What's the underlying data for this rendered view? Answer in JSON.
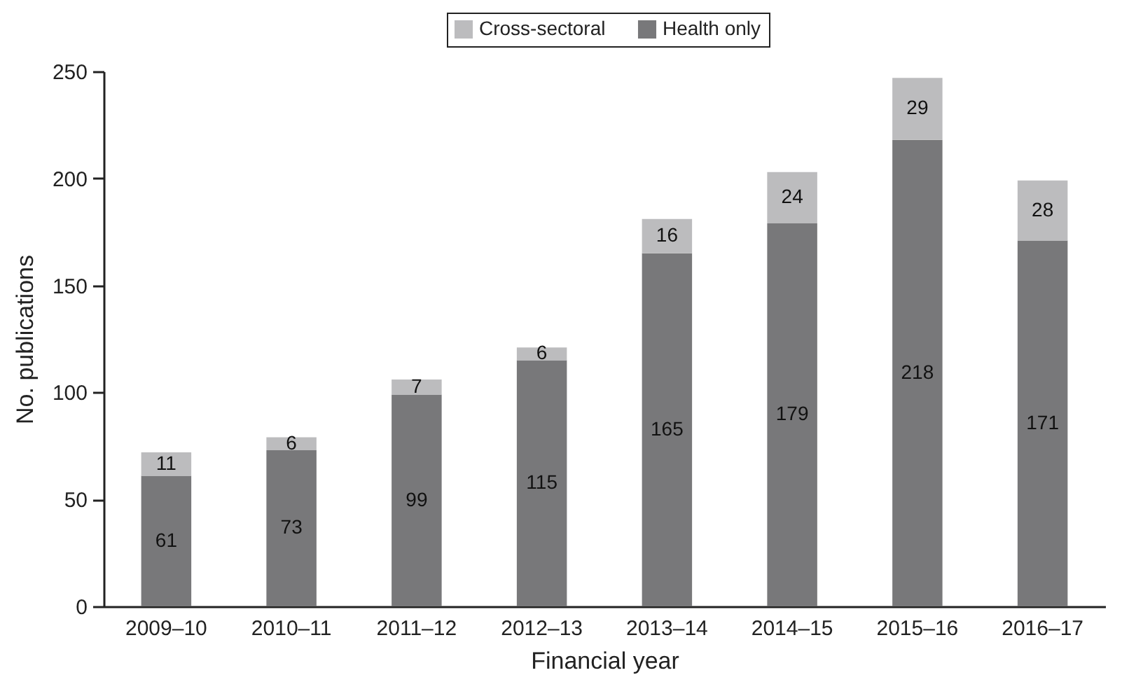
{
  "chart_data": {
    "type": "bar",
    "stacked": true,
    "xlabel": "Financial year",
    "ylabel": "No. publications",
    "categories": [
      "2009–10",
      "2010–11",
      "2011–12",
      "2012–13",
      "2013–14",
      "2014–15",
      "2015–16",
      "2016–17"
    ],
    "series": [
      {
        "name": "Health only",
        "color": "#78787a",
        "values": [
          61,
          73,
          99,
          115,
          165,
          179,
          218,
          171
        ]
      },
      {
        "name": "Cross-sectoral",
        "color": "#bcbcbe",
        "values": [
          11,
          6,
          7,
          6,
          16,
          24,
          29,
          28
        ]
      }
    ],
    "ylim": [
      0,
      250
    ],
    "yticks": [
      0,
      50,
      100,
      150,
      200,
      250
    ],
    "grid": false,
    "legend": "top",
    "data_labels": true
  }
}
